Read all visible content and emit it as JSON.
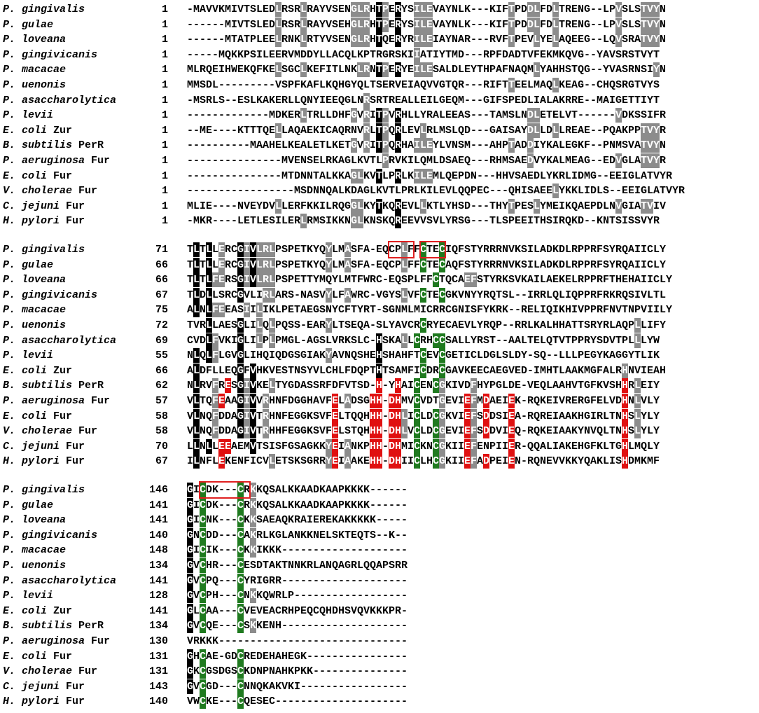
{
  "colors": {
    "identical": "#000000",
    "similar": "#8c8c8c",
    "cysteine": "#1f7a1f",
    "histidine_aspartate_glutamate": "#e01010",
    "motif_box": "#e02020"
  },
  "organisms": [
    {
      "genus": "P. gingivalis",
      "suffix": ""
    },
    {
      "genus": "P. gulae",
      "suffix": ""
    },
    {
      "genus": "P. loveana",
      "suffix": ""
    },
    {
      "genus": "P. gingivicanis",
      "suffix": ""
    },
    {
      "genus": "P. macacae",
      "suffix": ""
    },
    {
      "genus": "P. uenonis",
      "suffix": ""
    },
    {
      "genus": "P. asaccharolytica",
      "suffix": ""
    },
    {
      "genus": "P. levii",
      "suffix": ""
    },
    {
      "genus": "E. coli",
      "suffix": " Zur"
    },
    {
      "genus": "B. subtilis",
      "suffix": " PerR"
    },
    {
      "genus": "P. aeruginosa",
      "suffix": " Fur"
    },
    {
      "genus": "E. coli",
      "suffix": " Fur"
    },
    {
      "genus": "V. cholerae",
      "suffix": " Fur"
    },
    {
      "genus": "C. jejuni",
      "suffix": " Fur"
    },
    {
      "genus": "H. pylori",
      "suffix": " Fur"
    }
  ],
  "blocks": [
    {
      "starts": [
        "1",
        "1",
        "1",
        "1",
        "1",
        "1",
        "1",
        "1",
        "1",
        "1",
        "1",
        "1",
        "1",
        "1",
        "1"
      ],
      "seqs": [
        "-MAVVKMIVTSLEDLRSRLRAYVSENGLRHTPERYSILEVAYNLK---KIFTPDDLFDLTRENG--LPVSLSTVYN",
        "------MIVTSLEDLRSRLRAYVSEHGLRHTPERYSILEVAYNLK---KIFTPDDLFDLTRENG--LPVSLSTVYN",
        "------MTATPLEELRNKLRTYVSENGLRHTQERYRILEIAYNAR---RVFTPEVLYELAQEEG--LQVSRATVYN",
        "-----MQKKPSILEERVMDDYLLACQLKPTRGRSKIIATIYTMD---RPFDADTVFEKMKQVG--YAVSRSTVYT",
        "MLRQEIHWEKQFKELSGCLKEFITLNKLRNTPERYEILESALDLEYTHPAFNAQMLYAHHSTQG--YVASRNSIYN",
        "MMSDL---------VSPFKAFLKQHGYQLTSERVEIAQVVGTQR---RIFTTEELMAQLKEAG--CHQSRGTVYS",
        "-MSRLS--ESLKAKERLLQNYIEEQGLNRSRTREALLEILGEQM---GIFSPEDLIALAKRRE--MAIGETTIYT",
        "-------------MDKERLTRLLDHFGVRITPVRHLLYRALEEAS---TAMSLNDLETELVT------VDKSSIFR",
        "--ME----KTTTQELLAQAEKICAQRNVRLTPQRLEVLRLMSLQD---GAISAYDLLDLLREAE--PQAKPPTVYR",
        "----------MAAHELKEALETLKETGVRITPQRHAILEYLVNSM---AHPTADDIYKALEGKF--PNMSVATVYN",
        "---------------MVENSELRKAGLKVTLPRVKILQMLDSAEQ---RHMSAEDVYKALMEAG--EDVGLATVYR",
        "---------------MTDNNTALKKAGLKVTLPRLKILEMLQEPDN---HHVSAEDLYKRLIDMG--EEIGLATVYR",
        "-----------------MSDNNQALKDAGLKVTLPRLKILEVLQQPEC---QHISAEELYKKLIDLS--EEIGLATVYR",
        "MLIE----NVEYDVLLERFKKILRQGGLKYTKQREVLLKTLYHSD---THYTPESLYMEIKQAEPDLNVGIATVIV",
        "-MKR----LETLESILERLRMSIKKNGLKNSKQREEVVSVLYRSG---TLSPEEITHSIRQKD--KNTSISSVYR"
      ],
      "marks": [
        "  ........  ..........................................................  ",
        "",
        "",
        "",
        "",
        "",
        "",
        "",
        "",
        "",
        "",
        "",
        "",
        "",
        ""
      ]
    },
    {
      "starts": [
        "71",
        "66",
        "66",
        "67",
        "75",
        "72",
        "69",
        "55",
        "66",
        "62",
        "57",
        "58",
        "58",
        "70",
        "67"
      ],
      "seqs": [
        "TLTLLERCGIVLRLPSPETKYQYLMASFA-EQCPLFFCTECIQFSTYRRRNVKSILADKDLRPPRFSYRQAIICLY",
        "TLTLLERCGIVLRLPSPETKYQYLMASFA-EQCPLFFCTECAQFSTYRRRNVKSILADKDLRPPRFSYRQAIICLY",
        "TLTLFERSGIVLRLPSPETTYMQYLMTFWRC-EQSPLFFCTQCAEFSTYRKSVKAILAEKELRPPRFTHEHAIICLY",
        "TLDLLSRCGVLIRLARS-NASVYLFAWRC-VGYSLVFCTECGKVNYYRQTSL--IRRLQLIQPPRFRKRQSIVLTL",
        "ALNLFEEASIILIKLPETAEGSNYCFTYRT-SGNMLMICRRCGNISFYKRK--RELIQIKHIVPPRFNVTNPVIILY",
        "TVRLLAESGLILQLPQSS-EARYLTSEQA-SLYAVCRCRYECAEVLYRQP--RRLKALHHATTSRYRLAQPLLIFY",
        "CVDLFVKIGLILPLPMGL-AGSLVRKSLC-HSKALLCRHCCSALLYRST--AALTELQTVTPPRYSDVTPLLLYW",
        "NLQLFLGVGLIHQIQDGSGIAKYAVNQSHEHSHAHFTCEVCGETICLDGLSLDY-SQ--LLLPEGYKAGGYTLIK",
        "ALDFLLEQGFVHKVESTNSYVLCHLFDQPTHTSAMFICDRCGAVKEECAEGVED-IMHTLAAKMGFALRHNVIEAH",
        "NLRVFRESGIVKELTYGDASSRFDFVTSD-H-YHAICENCGKIVDFHYPGLDE-VEQLAAHVTGFKVSHHRLEIY",
        "VLTQFEAAGIVVRHNFDGGHAVFELADSGHH-DHMVCVDTGEVIEFMDAEIEK-RQKEIVRERGFELVDHNLVLY",
        "VLNQFDDAGIVTRHNFEGGKSVFELTQQHHH-DHLICLDCGKVIEFSDDSIEA-RQREIAAKHGIRLTNHSLYLY",
        "VLNQFDDAGIVTRHHFEGGKSVFELSTQHHH-DHLVCLDCGEVIEFSDDVIEQ-RQKEIAAKYNVQLTNHSLYLY",
        "LLNLLEEAEMVTSISFGSAGKKYEIANKPHH-DHMICKNCGKIIEFENPIIER-QQALIAKEHGFKLTGHLMQLY",
        "ILNFLEKENFICVLETSKSGRRYEIAAKEHH-DHIICLHCGKIIEFADPEIEN-RQNEVVKKYQAKLISHDMKMF"
      ],
      "marks": [
        "",
        "",
        "",
        "",
        "",
        "",
        "",
        "",
        "",
        "",
        "",
        "",
        "",
        "",
        ""
      ]
    },
    {
      "starts": [
        "146",
        "141",
        "141",
        "140",
        "148",
        "134",
        "141",
        "128",
        "141",
        "134",
        "130",
        "131",
        "131",
        "143",
        "140"
      ],
      "seqs": [
        "GICDK---CRKKQSALKKAADKAAPKKKK------",
        "GICDK---CRKKQSALKKAADKAAPKKKK------",
        "GICNK---CKKSAEAQKRAIEREKAKKKKK-----",
        "GNCDD---CAKRLKGLANKKNELSKTEQTS--K--",
        "GICIK---CKKIKKK--------------------",
        "GVCHR---CESDTAKTNNKRLANQAGRLQQAPSRR",
        "GVCPQ---CYRIGRR--------------------",
        "GVCPH---CNKKQWRLP------------------",
        "GLCAA---CVEVEACRHPEQCQHDHSVQVKKKPR-",
        "GVCQE---CSKKENH--------------------",
        "VRKKK------------------------------",
        "GHCAE-GDCREDEHAHEGK----------------",
        "GKCGSDGSCKDNPNAHKPKK---------------",
        "GVCGD---CNNQKAKVKI-----------------",
        "VWCKE---CQESEC---------------------"
      ],
      "marks": [
        "",
        "",
        "",
        "",
        "",
        "",
        "",
        "",
        "",
        "",
        "",
        "",
        "",
        "",
        ""
      ]
    }
  ]
}
